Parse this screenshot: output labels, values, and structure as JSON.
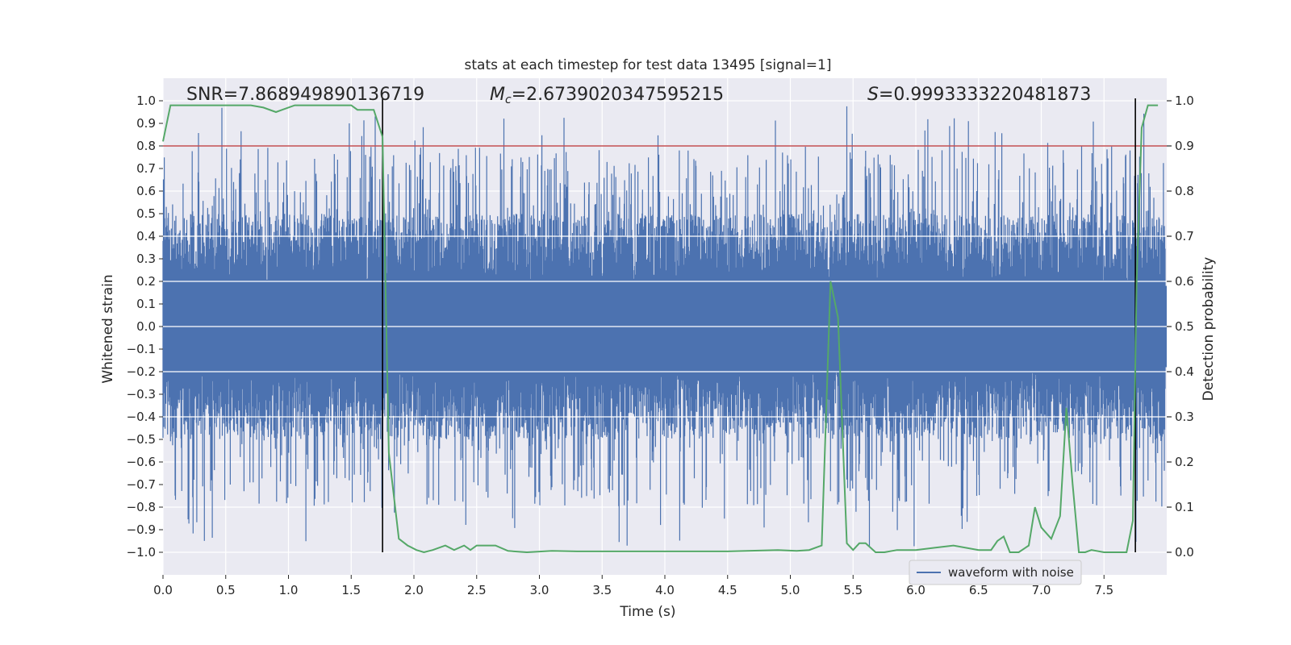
{
  "chart_data": {
    "type": "line",
    "title": "stats at each timestep for test data 13495 [signal=1]",
    "xlabel": "Time (s)",
    "ylabel": "Whitened strain",
    "y2label": "Detection probability",
    "xlim": [
      0.0,
      8.0
    ],
    "ylim": [
      -1.1,
      1.1
    ],
    "y2lim": [
      -0.05,
      1.05
    ],
    "xticks": [
      0.0,
      0.5,
      1.0,
      1.5,
      2.0,
      2.5,
      3.0,
      3.5,
      4.0,
      4.5,
      5.0,
      5.5,
      6.0,
      6.5,
      7.0,
      7.5
    ],
    "xtick_labels": [
      "0.0",
      "0.5",
      "1.0",
      "1.5",
      "2.0",
      "2.5",
      "3.0",
      "3.5",
      "4.0",
      "4.5",
      "5.0",
      "5.5",
      "6.0",
      "6.5",
      "7.0",
      "7.5"
    ],
    "yticks": [
      1.0,
      0.9,
      0.8,
      0.7,
      0.6,
      0.5,
      0.4,
      0.3,
      0.2,
      0.1,
      0.0,
      -0.1,
      -0.2,
      -0.3,
      -0.4,
      -0.5,
      -0.6,
      -0.7,
      -0.8,
      -0.9,
      -1.0
    ],
    "ytick_labels": [
      "1.0",
      "0.9",
      "0.8",
      "0.7",
      "0.6",
      "0.5",
      "0.4",
      "0.3",
      "0.2",
      "0.1",
      "0.0",
      "−0.1",
      "−0.2",
      "−0.3",
      "−0.4",
      "−0.5",
      "−0.6",
      "−0.7",
      "−0.8",
      "−0.9",
      "−1.0"
    ],
    "y2ticks": [
      1.0,
      0.9,
      0.8,
      0.7,
      0.6,
      0.5,
      0.4,
      0.3,
      0.2,
      0.1,
      0.0
    ],
    "y2tick_labels": [
      "1.0",
      "0.9",
      "0.8",
      "0.7",
      "0.6",
      "0.5",
      "0.4",
      "0.3",
      "0.2",
      "0.1",
      "0.0"
    ],
    "threshold": {
      "axis": "right",
      "value": 0.9,
      "color": "#c44e52"
    },
    "vlines": [
      1.75,
      7.75
    ],
    "annotations": {
      "snr": "SNR=7.868949890136719",
      "mc_symbol": "M",
      "mc_sub": "c",
      "mc_value": "=2.6739020347595215",
      "s_symbol": "S",
      "s_value": "=0.9993333220481873"
    },
    "legend": {
      "label": "waveform with noise",
      "position": "lower-right"
    },
    "series": [
      {
        "name": "waveform with noise",
        "axis": "left",
        "color": "#4c72b0",
        "kind": "noise",
        "amplitude_range": [
          -1.0,
          1.0
        ]
      },
      {
        "name": "detection probability",
        "axis": "right",
        "color": "#55a868",
        "x": [
          0.0,
          0.06,
          0.2,
          0.5,
          0.7,
          0.8,
          0.9,
          0.95,
          1.05,
          1.4,
          1.5,
          1.55,
          1.68,
          1.75,
          1.8,
          1.88,
          1.95,
          2.02,
          2.08,
          2.15,
          2.25,
          2.32,
          2.4,
          2.45,
          2.5,
          2.6,
          2.65,
          2.75,
          2.9,
          3.1,
          3.3,
          3.6,
          4.0,
          4.5,
          4.9,
          5.05,
          5.15,
          5.25,
          5.32,
          5.38,
          5.45,
          5.5,
          5.55,
          5.6,
          5.68,
          5.75,
          5.85,
          6.0,
          6.15,
          6.3,
          6.5,
          6.6,
          6.65,
          6.7,
          6.75,
          6.82,
          6.9,
          6.95,
          7.0,
          7.08,
          7.15,
          7.2,
          7.25,
          7.3,
          7.35,
          7.4,
          7.5,
          7.58,
          7.63,
          7.68,
          7.73,
          7.76,
          7.8,
          7.85,
          7.9,
          7.93
        ],
        "values": [
          0.91,
          0.99,
          0.99,
          0.99,
          0.99,
          0.985,
          0.975,
          0.98,
          0.99,
          0.99,
          0.99,
          0.98,
          0.98,
          0.92,
          0.22,
          0.03,
          0.015,
          0.005,
          0.0,
          0.005,
          0.015,
          0.005,
          0.015,
          0.005,
          0.015,
          0.015,
          0.015,
          0.003,
          0.0,
          0.003,
          0.002,
          0.002,
          0.002,
          0.002,
          0.005,
          0.003,
          0.005,
          0.015,
          0.6,
          0.52,
          0.02,
          0.005,
          0.02,
          0.02,
          0.0,
          0.0,
          0.005,
          0.005,
          0.01,
          0.015,
          0.005,
          0.005,
          0.025,
          0.035,
          0.0,
          0.0,
          0.015,
          0.1,
          0.055,
          0.03,
          0.08,
          0.32,
          0.15,
          0.0,
          0.0,
          0.005,
          0.0,
          0.0,
          0.0,
          0.0,
          0.07,
          0.6,
          0.94,
          0.99,
          0.99,
          0.99
        ]
      }
    ]
  }
}
